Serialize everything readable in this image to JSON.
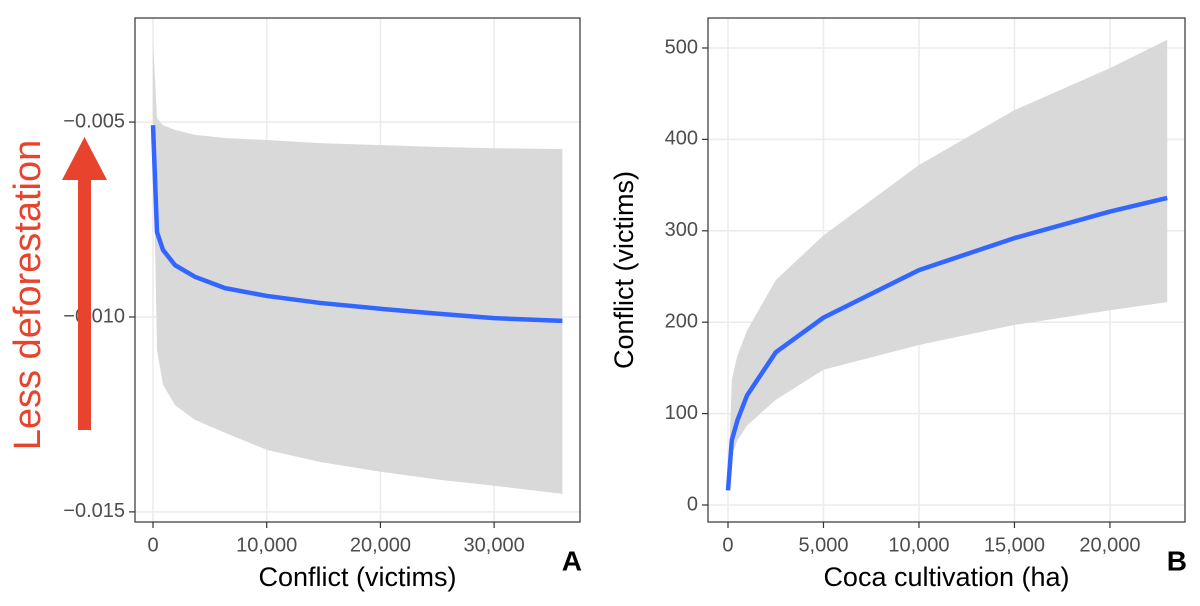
{
  "chart_data": [
    {
      "type": "line",
      "xlabel": "Conflict (victims)",
      "annotation": "Less deforestation",
      "panel_label": "A",
      "x": [
        0,
        350,
        880,
        1935,
        3690,
        6330,
        10000,
        14690,
        20000,
        25240,
        30000,
        36000
      ],
      "series": [
        {
          "color": "#3366ff",
          "band_color": "#d9d9d9",
          "values": [
            -0.00508,
            -0.00782,
            -0.00828,
            -0.00867,
            -0.00897,
            -0.00926,
            -0.00946,
            -0.00964,
            -0.00979,
            -0.00992,
            -0.01003,
            -0.0101
          ],
          "lower": [
            -0.0052,
            -0.01085,
            -0.01174,
            -0.01226,
            -0.01264,
            -0.01297,
            -0.01341,
            -0.01372,
            -0.01397,
            -0.01418,
            -0.01433,
            -0.01454
          ],
          "upper": [
            -0.0029,
            -0.0049,
            -0.00508,
            -0.0052,
            -0.00533,
            -0.00541,
            -0.00546,
            -0.00554,
            -0.00559,
            -0.00564,
            -0.00567,
            -0.00569
          ]
        }
      ],
      "xlim": [
        -1583,
        37550
      ],
      "xticks": [
        0,
        {
          "value": 10000,
          "label": "10,000"
        },
        {
          "value": 20000,
          "label": "20,000"
        },
        {
          "value": 30000,
          "label": "30,000"
        }
      ],
      "ylim": [
        -0.01526,
        -0.00233
      ],
      "yticks": [
        {
          "value": -0.015,
          "label": "−0.015"
        },
        {
          "value": -0.01,
          "label": "−0.010"
        },
        {
          "value": -0.005,
          "label": "−0.005"
        }
      ],
      "grid": true
    },
    {
      "type": "line",
      "xlabel": "Coca cultivation (ha)",
      "ylabel": "Conflict (victims)",
      "panel_label": "B",
      "x": [
        0,
        200,
        500,
        1000,
        2500,
        5000,
        10000,
        15000,
        20000,
        23000
      ],
      "series": [
        {
          "color": "#3366ff",
          "band_color": "#d9d9d9",
          "values": [
            16,
            71,
            93,
            120,
            167,
            205,
            257,
            292,
            321,
            336
          ],
          "lower": [
            16,
            55,
            71,
            87,
            115,
            148,
            175,
            197,
            213,
            222
          ],
          "upper": [
            16,
            137,
            164,
            191,
            246,
            295,
            372,
            432,
            478,
            509
          ]
        }
      ],
      "xlim": [
        -1047,
        23930
      ],
      "xticks": [
        0,
        {
          "value": 5000,
          "label": "5,000"
        },
        {
          "value": 10000,
          "label": "10,000"
        },
        {
          "value": 15000,
          "label": "15,000"
        },
        {
          "value": 20000,
          "label": "20,000"
        }
      ],
      "ylim": [
        -18.6,
        532.8
      ],
      "yticks": [
        0,
        100,
        200,
        300,
        400,
        500
      ],
      "grid": true
    }
  ]
}
